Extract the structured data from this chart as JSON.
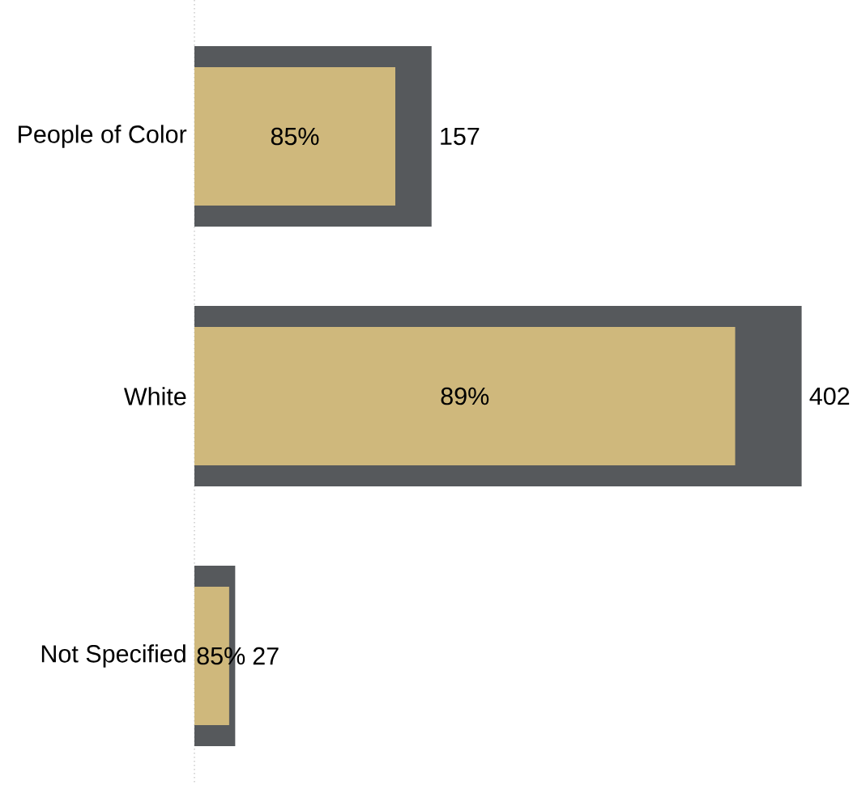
{
  "chart_data": {
    "type": "bar",
    "orientation": "horizontal",
    "categories": [
      "People of Color",
      "White",
      "Not Specified"
    ],
    "series": [
      {
        "color": "#56595c",
        "values": [
          157,
          402,
          27
        ],
        "value_labels": [
          "157",
          "402",
          "27"
        ]
      },
      {
        "color": "#cfb87c",
        "values": [
          133,
          358,
          23
        ]
      }
    ],
    "annotations": [
      "85%",
      "89%",
      "85%"
    ],
    "tick_labels": "y"
  }
}
